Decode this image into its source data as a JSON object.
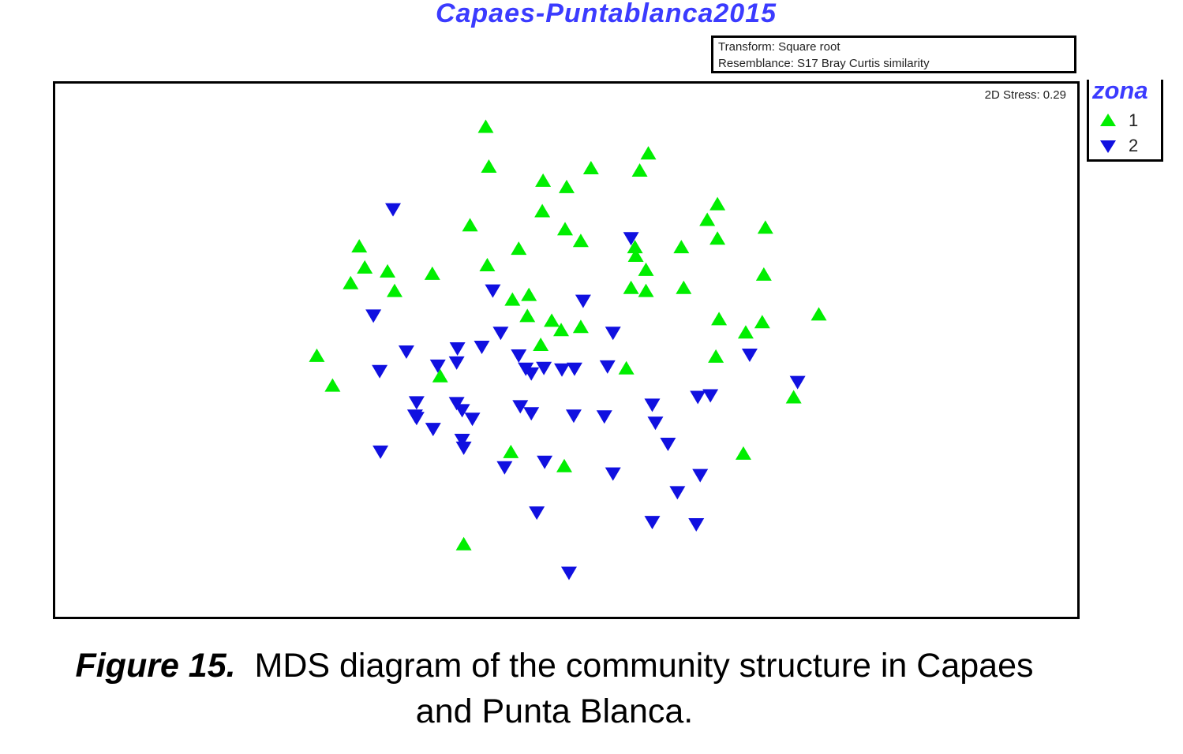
{
  "figure": {
    "title": "Capaes-Puntablanca2015",
    "info_lines": [
      "Transform: Square root",
      "Resemblance: S17 Bray Curtis similarity"
    ],
    "stress": "2D Stress: 0.29",
    "caption_label": "Figure 15.",
    "caption_line1": "MDS diagram of the community structure in Capaes",
    "caption_line2": "and Punta Blanca."
  },
  "chart_data": {
    "type": "scatter",
    "title": "Capaes-Puntablanca2015",
    "xlabel": "",
    "ylabel": "",
    "xlim": [
      0,
      1301
    ],
    "ylim": [
      0,
      682
    ],
    "grid": false,
    "legend_placement": "right-top",
    "legend_title": "zona",
    "series": [
      {
        "name": "1",
        "marker": "triangle-up",
        "color": "#00ee00",
        "points": [
          [
            548,
            56
          ],
          [
            552,
            107
          ],
          [
            621,
            125
          ],
          [
            651,
            133
          ],
          [
            682,
            109
          ],
          [
            755,
            90
          ],
          [
            744,
            112
          ],
          [
            620,
            164
          ],
          [
            528,
            182
          ],
          [
            649,
            187
          ],
          [
            669,
            202
          ],
          [
            590,
            212
          ],
          [
            550,
            233
          ],
          [
            423,
            241
          ],
          [
            387,
            209
          ],
          [
            394,
            236
          ],
          [
            376,
            256
          ],
          [
            432,
            266
          ],
          [
            480,
            244
          ],
          [
            738,
            210
          ],
          [
            739,
            221
          ],
          [
            752,
            239
          ],
          [
            797,
            210
          ],
          [
            843,
            155
          ],
          [
            830,
            175
          ],
          [
            904,
            185
          ],
          [
            843,
            199
          ],
          [
            902,
            245
          ],
          [
            733,
            262
          ],
          [
            752,
            266
          ],
          [
            800,
            262
          ],
          [
            582,
            277
          ],
          [
            603,
            271
          ],
          [
            601,
            298
          ],
          [
            632,
            304
          ],
          [
            669,
            312
          ],
          [
            644,
            316
          ],
          [
            618,
            335
          ],
          [
            845,
            302
          ],
          [
            879,
            319
          ],
          [
            900,
            306
          ],
          [
            972,
            296
          ],
          [
            333,
            349
          ],
          [
            353,
            387
          ],
          [
            490,
            375
          ],
          [
            727,
            365
          ],
          [
            841,
            350
          ],
          [
            940,
            402
          ],
          [
            580,
            472
          ],
          [
            648,
            490
          ],
          [
            876,
            474
          ],
          [
            520,
            590
          ]
        ]
      },
      {
        "name": "2",
        "marker": "triangle-down",
        "color": "#1010e0",
        "points": [
          [
            430,
            160
          ],
          [
            733,
            197
          ],
          [
            557,
            264
          ],
          [
            672,
            277
          ],
          [
            405,
            296
          ],
          [
            567,
            318
          ],
          [
            543,
            336
          ],
          [
            710,
            318
          ],
          [
            512,
            338
          ],
          [
            447,
            342
          ],
          [
            487,
            360
          ],
          [
            511,
            356
          ],
          [
            413,
            367
          ],
          [
            590,
            347
          ],
          [
            599,
            364
          ],
          [
            606,
            370
          ],
          [
            622,
            363
          ],
          [
            645,
            365
          ],
          [
            661,
            364
          ],
          [
            703,
            361
          ],
          [
            884,
            346
          ],
          [
            945,
            381
          ],
          [
            818,
            400
          ],
          [
            834,
            398
          ],
          [
            460,
            407
          ],
          [
            511,
            408
          ],
          [
            518,
            417
          ],
          [
            460,
            427
          ],
          [
            458,
            424
          ],
          [
            481,
            441
          ],
          [
            531,
            428
          ],
          [
            592,
            412
          ],
          [
            606,
            421
          ],
          [
            660,
            424
          ],
          [
            699,
            425
          ],
          [
            760,
            410
          ],
          [
            764,
            433
          ],
          [
            780,
            460
          ],
          [
            518,
            455
          ],
          [
            520,
            465
          ],
          [
            414,
            470
          ],
          [
            572,
            490
          ],
          [
            623,
            483
          ],
          [
            710,
            498
          ],
          [
            821,
            500
          ],
          [
            792,
            522
          ],
          [
            613,
            548
          ],
          [
            760,
            560
          ],
          [
            816,
            563
          ],
          [
            654,
            625
          ]
        ]
      }
    ]
  }
}
